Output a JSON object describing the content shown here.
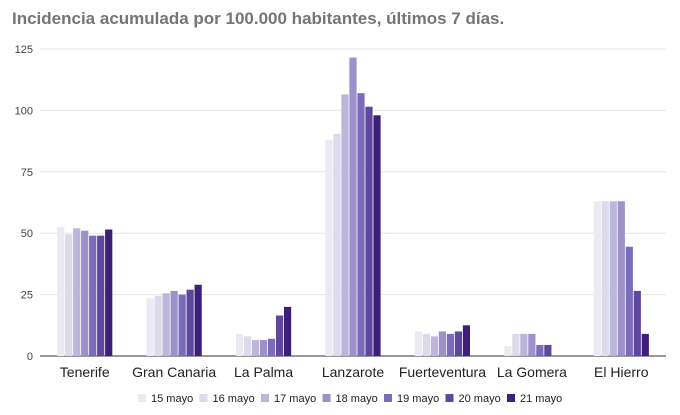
{
  "title": "Incidencia acumulada por 100.000 habitantes, últimos 7 días.",
  "chart_data": {
    "type": "bar",
    "title": "Incidencia acumulada por 100.000 habitantes, últimos 7 días.",
    "xlabel": "",
    "ylabel": "",
    "ylim": [
      0,
      125
    ],
    "yticks": [
      0,
      25,
      50,
      75,
      100,
      125
    ],
    "grid": true,
    "legend_position": "bottom",
    "categories": [
      "Tenerife",
      "Gran Canaria",
      "La Palma",
      "Lanzarote",
      "Fuerteventura",
      "La Gomera",
      "El Hierro"
    ],
    "series": [
      {
        "name": "15 mayo",
        "color": "#ebe9f2",
        "values": [
          52.5,
          23.5,
          9.0,
          88.0,
          10.0,
          4.0,
          63.0
        ]
      },
      {
        "name": "16 mayo",
        "color": "#dcdaeb",
        "values": [
          49.5,
          24.5,
          8.0,
          90.5,
          9.0,
          9.0,
          63.0
        ]
      },
      {
        "name": "17 mayo",
        "color": "#bcb5dc",
        "values": [
          52.0,
          25.5,
          6.5,
          106.5,
          8.0,
          9.0,
          63.0
        ]
      },
      {
        "name": "18 mayo",
        "color": "#9d90cb",
        "values": [
          51.0,
          26.5,
          6.5,
          121.5,
          10.0,
          9.0,
          63.0
        ]
      },
      {
        "name": "19 mayo",
        "color": "#7b6bbb",
        "values": [
          49.0,
          25.0,
          7.0,
          107.0,
          9.0,
          4.5,
          44.5
        ]
      },
      {
        "name": "20 mayo",
        "color": "#5f479f",
        "values": [
          49.0,
          27.0,
          16.5,
          101.5,
          10.0,
          4.5,
          26.5
        ]
      },
      {
        "name": "21 mayo",
        "color": "#3c1f78",
        "values": [
          51.5,
          29.0,
          20.0,
          98.0,
          12.5,
          0,
          9.0
        ]
      }
    ]
  }
}
